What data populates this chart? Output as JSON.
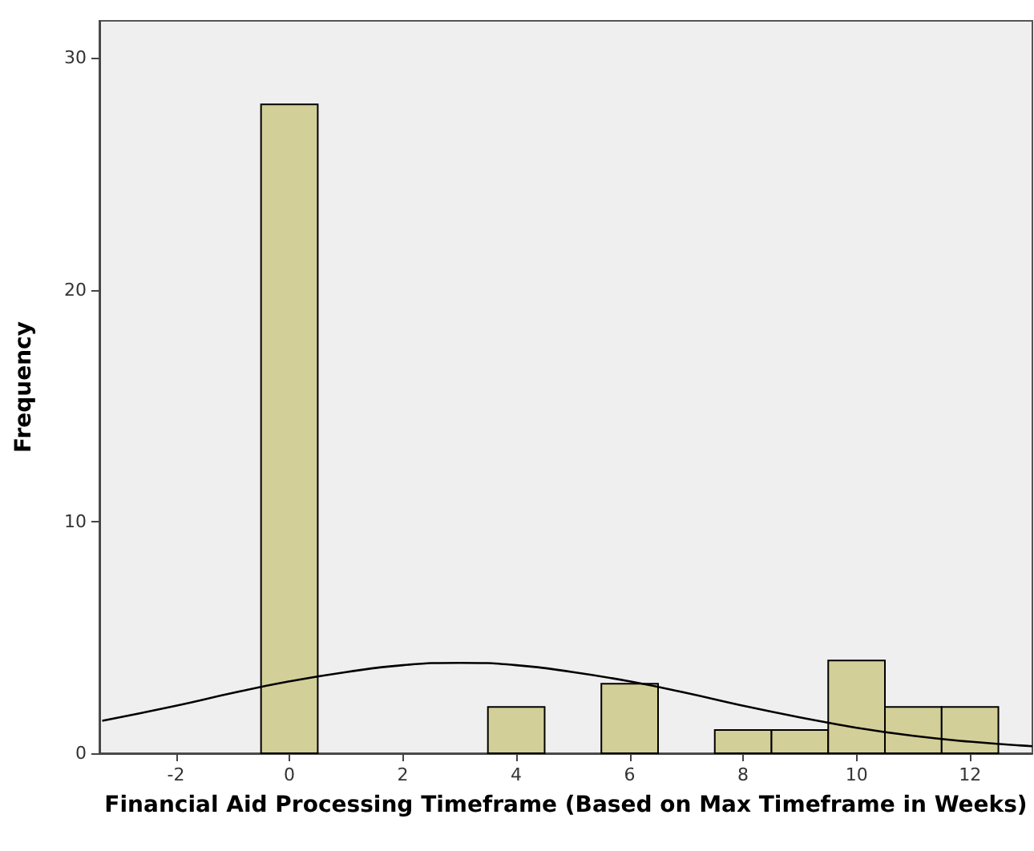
{
  "chart_data": {
    "type": "histogram",
    "xlabel": "Financial Aid Processing Timeframe (Based on Max Timeframe in Weeks)",
    "ylabel": "Frequency",
    "bins": [
      -0.5,
      0.5,
      1.5,
      2.5,
      3.5,
      4.5,
      5.5,
      6.5,
      7.5,
      8.5,
      9.5,
      10.5,
      11.5,
      12.5
    ],
    "values": [
      28,
      0,
      0,
      0,
      2,
      0,
      3,
      0,
      1,
      1,
      4,
      2,
      2
    ],
    "color": "#d3cf98",
    "series": [
      {
        "type": "line",
        "color": "#000000",
        "x": [
          -3.3,
          -2,
          -1,
          0,
          1,
          2,
          3,
          4,
          5,
          6,
          7,
          8,
          9,
          10,
          11,
          12,
          13.1
        ],
        "values": [
          1.4,
          2.05,
          2.6,
          3.1,
          3.5,
          3.8,
          3.9,
          3.8,
          3.5,
          3.1,
          2.6,
          2.05,
          1.55,
          1.1,
          0.75,
          0.5,
          0.3
        ]
      }
    ],
    "xlim": [
      -3.35,
      13.1
    ],
    "xticks": [
      -2,
      0,
      2,
      4,
      6,
      8,
      10,
      12
    ],
    "ylim": [
      0,
      31.6
    ],
    "yticks": [
      0,
      10,
      20,
      30
    ],
    "grid": false,
    "marker": "none",
    "line_style": "solid"
  }
}
